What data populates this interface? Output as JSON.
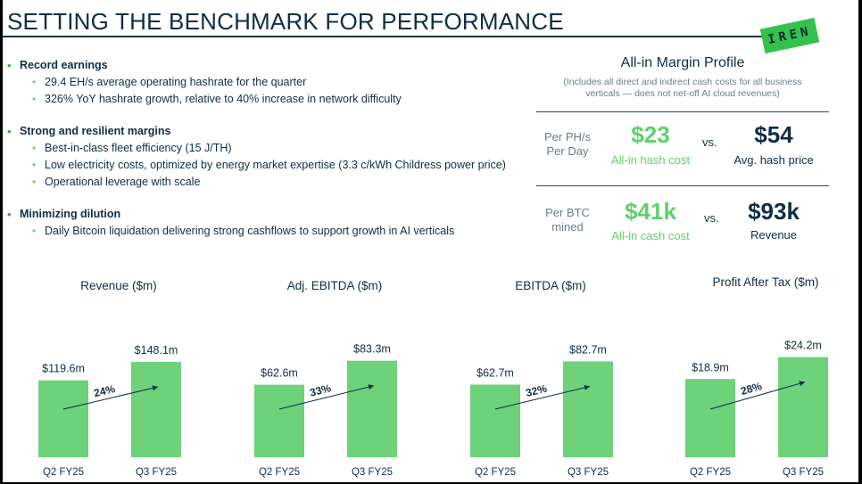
{
  "header": {
    "title": "SETTING THE BENCHMARK FOR PERFORMANCE",
    "logo_text": "IREN"
  },
  "colors": {
    "navy": "#0f2e43",
    "green_bar": "#6dd27a",
    "green_text": "#5fd06c",
    "grey_text": "#6b7d86",
    "logo_green": "#34c24f"
  },
  "bullets": [
    {
      "heading": "Record earnings",
      "items": [
        "29.4 EH/s average operating hashrate for the quarter",
        "326% YoY hashrate growth, relative to 40% increase in network difficulty"
      ]
    },
    {
      "heading": "Strong and resilient margins",
      "items": [
        "Best-in-class fleet efficiency (15 J/TH)",
        "Low electricity costs, optimized by energy market expertise (3.3 c/kWh Childress power price)",
        "Operational leverage with scale"
      ]
    },
    {
      "heading": "Minimizing dilution",
      "items": [
        "Daily Bitcoin liquidation delivering strong cashflows to support growth in AI verticals"
      ]
    }
  ],
  "margin_profile": {
    "title": "All-in Margin Profile",
    "subtitle_line1": "(Includes all direct and indirect cash costs for all business",
    "subtitle_line2": "verticals — does not net-off AI cloud revenues)",
    "rows": [
      {
        "label_line1": "Per PH/s",
        "label_line2": "Per Day",
        "cost_value": "$23",
        "cost_label": "All-in hash cost",
        "vs": "vs.",
        "compare_value": "$54",
        "compare_label": "Avg. hash price"
      },
      {
        "label_line1": "Per BTC",
        "label_line2": "mined",
        "cost_value": "$41k",
        "cost_label": "All-in cash cost",
        "vs": "vs.",
        "compare_value": "$93k",
        "compare_label": "Revenue"
      }
    ]
  },
  "chart_data": [
    {
      "type": "bar",
      "title": "Revenue ($m)",
      "categories": [
        "Q2 FY25",
        "Q3 FY25"
      ],
      "values": [
        119.6,
        148.1
      ],
      "labels": [
        "$119.6m",
        "$148.1m"
      ],
      "growth": "24%",
      "ylim": [
        0,
        180
      ]
    },
    {
      "type": "bar",
      "title": "Adj. EBITDA ($m)",
      "categories": [
        "Q2 FY25",
        "Q3 FY25"
      ],
      "values": [
        62.6,
        83.3
      ],
      "labels": [
        "$62.6m",
        "$83.3m"
      ],
      "growth": "33%",
      "ylim": [
        0,
        100
      ]
    },
    {
      "type": "bar",
      "title": "EBITDA ($m)",
      "categories": [
        "Q2 FY25",
        "Q3 FY25"
      ],
      "values": [
        62.7,
        82.7
      ],
      "labels": [
        "$62.7m",
        "$82.7m"
      ],
      "growth": "32%",
      "ylim": [
        0,
        100
      ]
    },
    {
      "type": "bar",
      "title": "Profit After Tax ($m)",
      "categories": [
        "Q2 FY25",
        "Q3 FY25"
      ],
      "values": [
        18.9,
        24.2
      ],
      "labels": [
        "$18.9m",
        "$24.2m"
      ],
      "growth": "28%",
      "ylim": [
        0,
        28
      ]
    }
  ]
}
